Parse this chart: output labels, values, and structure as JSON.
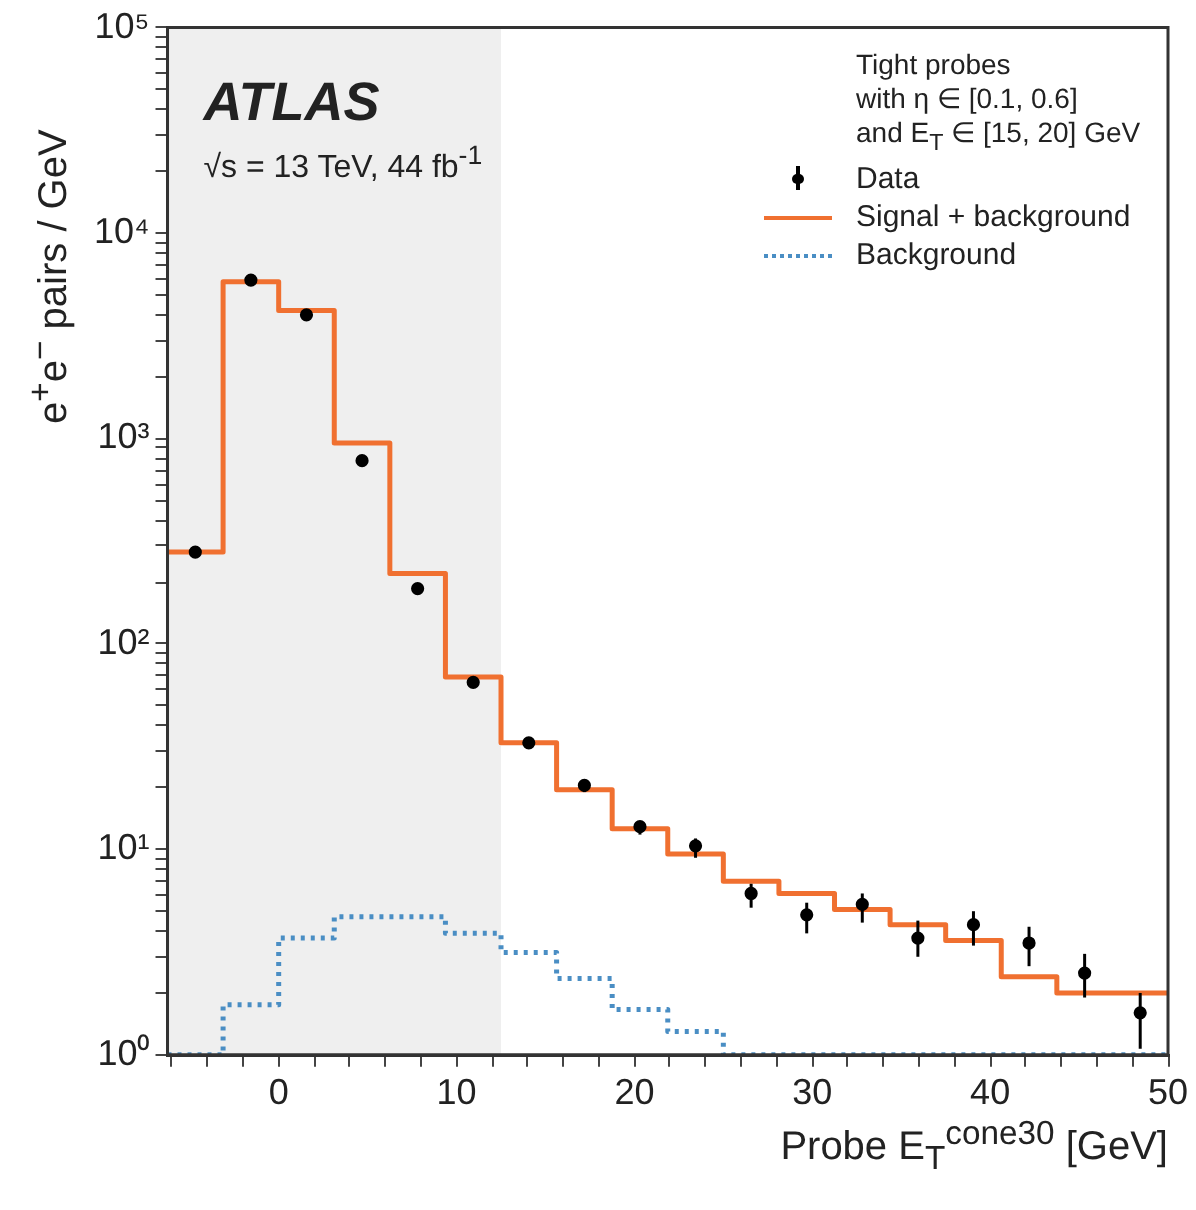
{
  "chart_data": {
    "type": "histogram",
    "xlabel": "Probe E$_{T}$$^{cone30}$ [GeV]",
    "ylabel": "e$^{+}$e$^{−}$ pairs / GeV",
    "legend_title": "Tight probes\nwith η ∈ [0.1, 0.6]\nand E$_{T}$ ∈ [15, 20] GeV",
    "annotations": [
      "ATLAS",
      "√s = 13 TeV, 44 fb$^{-1}$"
    ],
    "bins": [
      -6.25,
      -3.125,
      0,
      3.125,
      6.25,
      9.375,
      12.5,
      15.625,
      18.75,
      21.875,
      25,
      28.125,
      31.25,
      34.375,
      37.5,
      40.625,
      43.75,
      46.875,
      50
    ],
    "series": [
      {
        "name": "Data",
        "type": "scatter",
        "color": "#000000",
        "marker": "circle",
        "x": [
          -4.6875,
          -1.5625,
          1.5625,
          4.6875,
          7.8125,
          10.9375,
          14.0625,
          17.1875,
          20.3125,
          23.4375,
          26.5625,
          29.6875,
          32.8125,
          35.9375,
          39.0625,
          42.1875,
          45.3125,
          48.4375
        ],
        "values": [
          280,
          5900,
          4000,
          780,
          186,
          65,
          33,
          20.5,
          12.9,
          10.4,
          6.1,
          4.8,
          5.4,
          3.7,
          4.3,
          3.5,
          2.5,
          1.6
        ],
        "errors": [
          null,
          null,
          null,
          null,
          null,
          null,
          null,
          [
            19,
            22
          ],
          [
            11.8,
            13.5
          ],
          [
            9.1,
            11.3
          ],
          [
            5.2,
            6.8
          ],
          [
            3.9,
            5.5
          ],
          [
            4.4,
            6.1
          ],
          [
            3.0,
            4.5
          ],
          [
            3.4,
            5.0
          ],
          [
            2.7,
            4.2
          ],
          [
            1.9,
            3.1
          ],
          [
            1.07,
            2.0
          ]
        ]
      },
      {
        "name": "Signal + background",
        "color": "#f07030",
        "line_style": "solid",
        "values": [
          280,
          5800,
          4200,
          950,
          220,
          69,
          33,
          19.5,
          12.6,
          9.5,
          7.0,
          6.1,
          5.1,
          4.3,
          3.6,
          2.4,
          2.0,
          2.0
        ]
      },
      {
        "name": "Background",
        "color": "#4a8ec4",
        "line_style": "dotted",
        "values": [
          null,
          1.75,
          3.7,
          4.7,
          4.7,
          3.9,
          3.15,
          2.35,
          1.66,
          1.3,
          null,
          null,
          null,
          null,
          null,
          null,
          null,
          null
        ]
      }
    ],
    "bands": [
      {
        "axis": "x",
        "from": -6.25,
        "to": 12.5,
        "color": "#efefef"
      }
    ],
    "xlim": [
      -6.25,
      50
    ],
    "xticks": [
      {
        "value": -6,
        "label": null
      },
      {
        "value": -4,
        "label": null
      },
      {
        "value": -2,
        "label": null
      },
      0,
      {
        "value": 2,
        "label": null
      },
      {
        "value": 4,
        "label": null
      },
      {
        "value": 6,
        "label": null
      },
      {
        "value": 8,
        "label": null
      },
      10,
      {
        "value": 12,
        "label": null
      },
      {
        "value": 14,
        "label": null
      },
      {
        "value": 16,
        "label": null
      },
      {
        "value": 18,
        "label": null
      },
      20,
      {
        "value": 22,
        "label": null
      },
      {
        "value": 24,
        "label": null
      },
      {
        "value": 26,
        "label": null
      },
      {
        "value": 28,
        "label": null
      },
      30,
      {
        "value": 32,
        "label": null
      },
      {
        "value": 34,
        "label": null
      },
      {
        "value": 36,
        "label": null
      },
      {
        "value": 38,
        "label": null
      },
      40,
      {
        "value": 42,
        "label": null
      },
      {
        "value": 44,
        "label": null
      },
      {
        "value": 46,
        "label": null
      },
      {
        "value": 48,
        "label": null
      },
      50
    ],
    "ylim": [
      1,
      100000
    ],
    "yticks": [
      {
        "value": 1,
        "label": "10⁰"
      },
      {
        "value": 2,
        "label": null
      },
      {
        "value": 3,
        "label": null
      },
      {
        "value": 4,
        "label": null
      },
      {
        "value": 5,
        "label": null
      },
      {
        "value": 6,
        "label": null
      },
      {
        "value": 7,
        "label": null
      },
      {
        "value": 8,
        "label": null
      },
      {
        "value": 9,
        "label": null
      },
      {
        "value": 10,
        "label": "10¹"
      },
      {
        "value": 20,
        "label": null
      },
      {
        "value": 30,
        "label": null
      },
      {
        "value": 40,
        "label": null
      },
      {
        "value": 50,
        "label": null
      },
      {
        "value": 60,
        "label": null
      },
      {
        "value": 70,
        "label": null
      },
      {
        "value": 80,
        "label": null
      },
      {
        "value": 90,
        "label": null
      },
      {
        "value": 100,
        "label": "10²"
      },
      {
        "value": 200,
        "label": null
      },
      {
        "value": 300,
        "label": null
      },
      {
        "value": 400,
        "label": null
      },
      {
        "value": 500,
        "label": null
      },
      {
        "value": 600,
        "label": null
      },
      {
        "value": 700,
        "label": null
      },
      {
        "value": 800,
        "label": null
      },
      {
        "value": 900,
        "label": null
      },
      {
        "value": 1000,
        "label": "10³"
      },
      {
        "value": 2000,
        "label": null
      },
      {
        "value": 3000,
        "label": null
      },
      {
        "value": 4000,
        "label": null
      },
      {
        "value": 5000,
        "label": null
      },
      {
        "value": 6000,
        "label": null
      },
      {
        "value": 7000,
        "label": null
      },
      {
        "value": 8000,
        "label": null
      },
      {
        "value": 9000,
        "label": null
      },
      {
        "value": 10000,
        "label": "10⁴"
      },
      {
        "value": 20000,
        "label": null
      },
      {
        "value": 30000,
        "label": null
      },
      {
        "value": 40000,
        "label": null
      },
      {
        "value": 50000,
        "label": null
      },
      {
        "value": 60000,
        "label": null
      },
      {
        "value": 70000,
        "label": null
      },
      {
        "value": 80000,
        "label": null
      },
      {
        "value": 90000,
        "label": null
      },
      {
        "value": 100000,
        "label": "10⁵"
      }
    ],
    "log": "y",
    "grid": false,
    "legend": "top right"
  }
}
